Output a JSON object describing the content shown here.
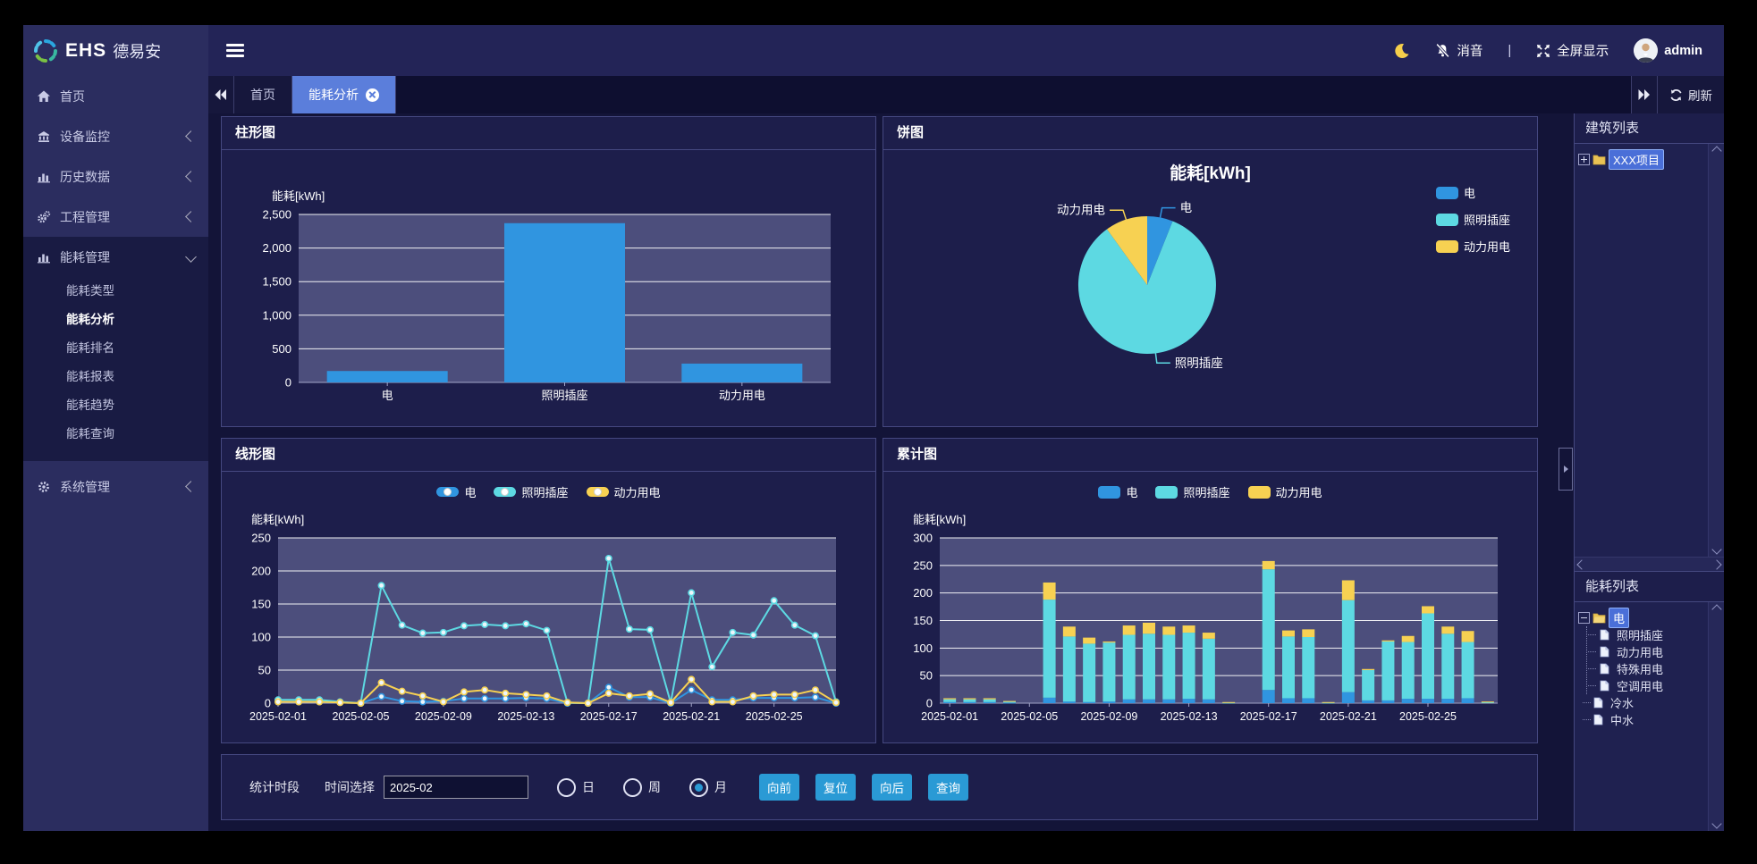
{
  "sidebar": {
    "logo_text": "EHS",
    "logo_suffix": "德易安",
    "items": [
      {
        "label": "首页"
      },
      {
        "label": "设备监控"
      },
      {
        "label": "历史数据"
      },
      {
        "label": "工程管理"
      },
      {
        "label": "能耗管理"
      },
      {
        "label": "系统管理"
      }
    ],
    "submenu": [
      {
        "label": "能耗类型"
      },
      {
        "label": "能耗分析",
        "active": true
      },
      {
        "label": "能耗排名"
      },
      {
        "label": "能耗报表"
      },
      {
        "label": "能耗趋势"
      },
      {
        "label": "能耗查询"
      }
    ]
  },
  "topbar": {
    "mute_label": "消音",
    "divider": "|",
    "fullscreen_label": "全屏显示",
    "username": "admin"
  },
  "tabbar": {
    "tab_home": "首页",
    "tab_active": "能耗分析",
    "refresh_label": "刷新"
  },
  "panels": {
    "bar_title": "柱形图",
    "pie_title": "饼图",
    "line_title": "线形图",
    "stack_title": "累计图"
  },
  "right_panel": {
    "building_title": "建筑列表",
    "building_root": "XXX项目",
    "energy_title": "能耗列表",
    "energy_root": "电",
    "energy_children": [
      "照明插座",
      "动力用电",
      "特殊用电",
      "空调用电"
    ],
    "energy_siblings": [
      "冷水",
      "中水"
    ]
  },
  "controls": {
    "section_label": "统计时段",
    "time_label": "时间选择",
    "time_value": "2025-02",
    "radios": [
      {
        "label": "日",
        "checked": false
      },
      {
        "label": "周",
        "checked": false
      },
      {
        "label": "月",
        "checked": true
      }
    ],
    "buttons": [
      "向前",
      "复位",
      "向后",
      "查询"
    ]
  },
  "icons": {
    "moon": "crescent-moon",
    "mute": "bell-slash",
    "fullscreen": "expand-arrows",
    "refresh": "circular-arrows",
    "folder": "yellow-folder",
    "file": "document-page"
  },
  "colors": {
    "blue": "#3095e0",
    "cyan": "#5dd9e2",
    "yellow": "#f7d152",
    "plot_bg": "#4c4e7c",
    "active_tab": "#5b7edb",
    "button": "#2a9ad5",
    "panel_bg": "#1d1e4b"
  },
  "chart_data": [
    {
      "id": "chart-bar",
      "type": "bar",
      "axis_name": "能耗[kWh]",
      "categories": [
        "电",
        "照明插座",
        "动力用电"
      ],
      "values": [
        170,
        2370,
        280
      ],
      "ylim": [
        0,
        2500
      ],
      "ystep": 500,
      "color": "#3095e0",
      "grid_on": true
    },
    {
      "id": "chart-pie",
      "type": "pie",
      "title": "能耗[kWh]",
      "legend_position": "right",
      "slices": [
        {
          "name": "电",
          "value": 170,
          "color": "#3095e0"
        },
        {
          "name": "照明插座",
          "value": 2370,
          "color": "#5dd9e2"
        },
        {
          "name": "动力用电",
          "value": 280,
          "color": "#f7d152"
        }
      ]
    },
    {
      "id": "chart-line",
      "type": "line",
      "axis_name": "能耗[kWh]",
      "ylim": [
        0,
        250
      ],
      "ystep": 50,
      "x_label_every": 4,
      "x": [
        "2025-02-01",
        "2025-02-02",
        "2025-02-03",
        "2025-02-04",
        "2025-02-05",
        "2025-02-06",
        "2025-02-07",
        "2025-02-08",
        "2025-02-09",
        "2025-02-10",
        "2025-02-11",
        "2025-02-12",
        "2025-02-13",
        "2025-02-14",
        "2025-02-15",
        "2025-02-16",
        "2025-02-17",
        "2025-02-18",
        "2025-02-19",
        "2025-02-20",
        "2025-02-21",
        "2025-02-22",
        "2025-02-23",
        "2025-02-24",
        "2025-02-25",
        "2025-02-26",
        "2025-02-27",
        "2025-02-28"
      ],
      "series": [
        {
          "name": "电",
          "color": "#3095e0",
          "values": [
            2,
            2,
            2,
            1,
            0,
            10,
            3,
            2,
            3,
            7,
            7,
            7,
            8,
            7,
            0,
            0,
            24,
            9,
            9,
            0,
            20,
            5,
            5,
            8,
            8,
            8,
            9,
            0
          ]
        },
        {
          "name": "照明插座",
          "color": "#5dd9e2",
          "values": [
            5,
            5,
            5,
            2,
            0,
            178,
            118,
            106,
            107,
            117,
            119,
            117,
            120,
            110,
            1,
            0,
            219,
            112,
            111,
            1,
            167,
            55,
            107,
            103,
            155,
            118,
            102,
            2
          ]
        },
        {
          "name": "动力用电",
          "color": "#f7d152",
          "values": [
            2,
            2,
            2,
            1,
            0,
            31,
            18,
            11,
            2,
            17,
            20,
            15,
            13,
            11,
            1,
            0,
            15,
            11,
            14,
            1,
            36,
            2,
            2,
            11,
            13,
            13,
            20,
            1
          ]
        }
      ]
    },
    {
      "id": "chart-stack",
      "type": "stacked-bar",
      "axis_name": "能耗[kWh]",
      "ylim": [
        0,
        300
      ],
      "ystep": 50,
      "x_label_every": 4,
      "x": [
        "2025-02-01",
        "2025-02-02",
        "2025-02-03",
        "2025-02-04",
        "2025-02-05",
        "2025-02-06",
        "2025-02-07",
        "2025-02-08",
        "2025-02-09",
        "2025-02-10",
        "2025-02-11",
        "2025-02-12",
        "2025-02-13",
        "2025-02-14",
        "2025-02-15",
        "2025-02-16",
        "2025-02-17",
        "2025-02-18",
        "2025-02-19",
        "2025-02-20",
        "2025-02-21",
        "2025-02-22",
        "2025-02-23",
        "2025-02-24",
        "2025-02-25",
        "2025-02-26",
        "2025-02-27",
        "2025-02-28"
      ],
      "series": [
        {
          "name": "电",
          "color": "#3095e0",
          "values": [
            2,
            2,
            2,
            1,
            0,
            10,
            3,
            2,
            3,
            7,
            7,
            7,
            8,
            7,
            0,
            0,
            24,
            9,
            9,
            0,
            20,
            5,
            5,
            8,
            8,
            8,
            9,
            0
          ]
        },
        {
          "name": "照明插座",
          "color": "#5dd9e2",
          "values": [
            5,
            5,
            5,
            2,
            0,
            178,
            118,
            106,
            107,
            117,
            119,
            117,
            120,
            110,
            1,
            0,
            219,
            112,
            111,
            1,
            167,
            55,
            107,
            103,
            155,
            118,
            102,
            2
          ]
        },
        {
          "name": "动力用电",
          "color": "#f7d152",
          "values": [
            2,
            2,
            2,
            1,
            0,
            31,
            18,
            11,
            2,
            17,
            20,
            15,
            13,
            11,
            1,
            0,
            15,
            11,
            14,
            1,
            36,
            2,
            2,
            11,
            13,
            13,
            20,
            1
          ]
        }
      ]
    }
  ]
}
